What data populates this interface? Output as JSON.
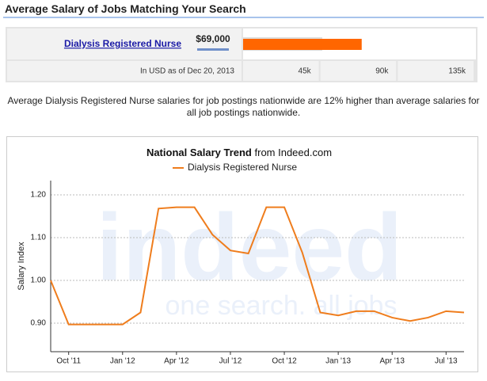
{
  "header": {
    "title": "Average Salary of Jobs Matching Your Search"
  },
  "description": "Average Dialysis Registered Nurse salaries for job postings nationwide are 12% higher than average salaries for all job postings nationwide.",
  "watermark": {
    "logo": "indeed",
    "tagline": "one search. all jobs"
  },
  "chart_data": [
    {
      "type": "bar",
      "orientation": "horizontal",
      "categories": [
        "Dialysis Registered Nurse"
      ],
      "values": [
        69000
      ],
      "value_labels": [
        "$69,000"
      ],
      "color": "#ff6600",
      "note": "In USD as of Dec 20, 2013",
      "xlim": [
        0,
        135000
      ],
      "xticks": [
        {
          "value": 45000,
          "label": "45k"
        },
        {
          "value": 90000,
          "label": "90k"
        },
        {
          "value": 135000,
          "label": "135k"
        }
      ]
    },
    {
      "type": "line",
      "title": "National Salary Trend",
      "title_source": "from Indeed.com",
      "y_label": "Salary Index",
      "categories": [
        null,
        "Oct '11",
        null,
        null,
        "Jan '12",
        null,
        null,
        "Apr '12",
        null,
        null,
        "Jul '12",
        null,
        null,
        "Oct '12",
        null,
        null,
        "Jan '13",
        null,
        null,
        "Apr '13",
        null,
        null,
        "Jul '13",
        null
      ],
      "series": [
        {
          "name": "Dialysis Registered Nurse",
          "color": "#ef7d1d",
          "values": [
            1.0,
            0.897,
            0.897,
            0.897,
            0.897,
            0.925,
            1.168,
            1.171,
            1.171,
            1.107,
            1.07,
            1.063,
            1.171,
            1.171,
            1.065,
            0.925,
            0.918,
            0.928,
            0.928,
            0.913,
            0.905,
            0.913,
            0.928,
            0.925
          ]
        }
      ],
      "ylim": [
        0.8333,
        1.2333
      ],
      "yticks": [
        {
          "value": 0.9,
          "label": "0.90"
        },
        {
          "value": 1.0,
          "label": "1.00"
        },
        {
          "value": 1.1,
          "label": "1.10"
        },
        {
          "value": 1.2,
          "label": "1.20"
        }
      ],
      "grid": true,
      "legend": "top"
    }
  ]
}
